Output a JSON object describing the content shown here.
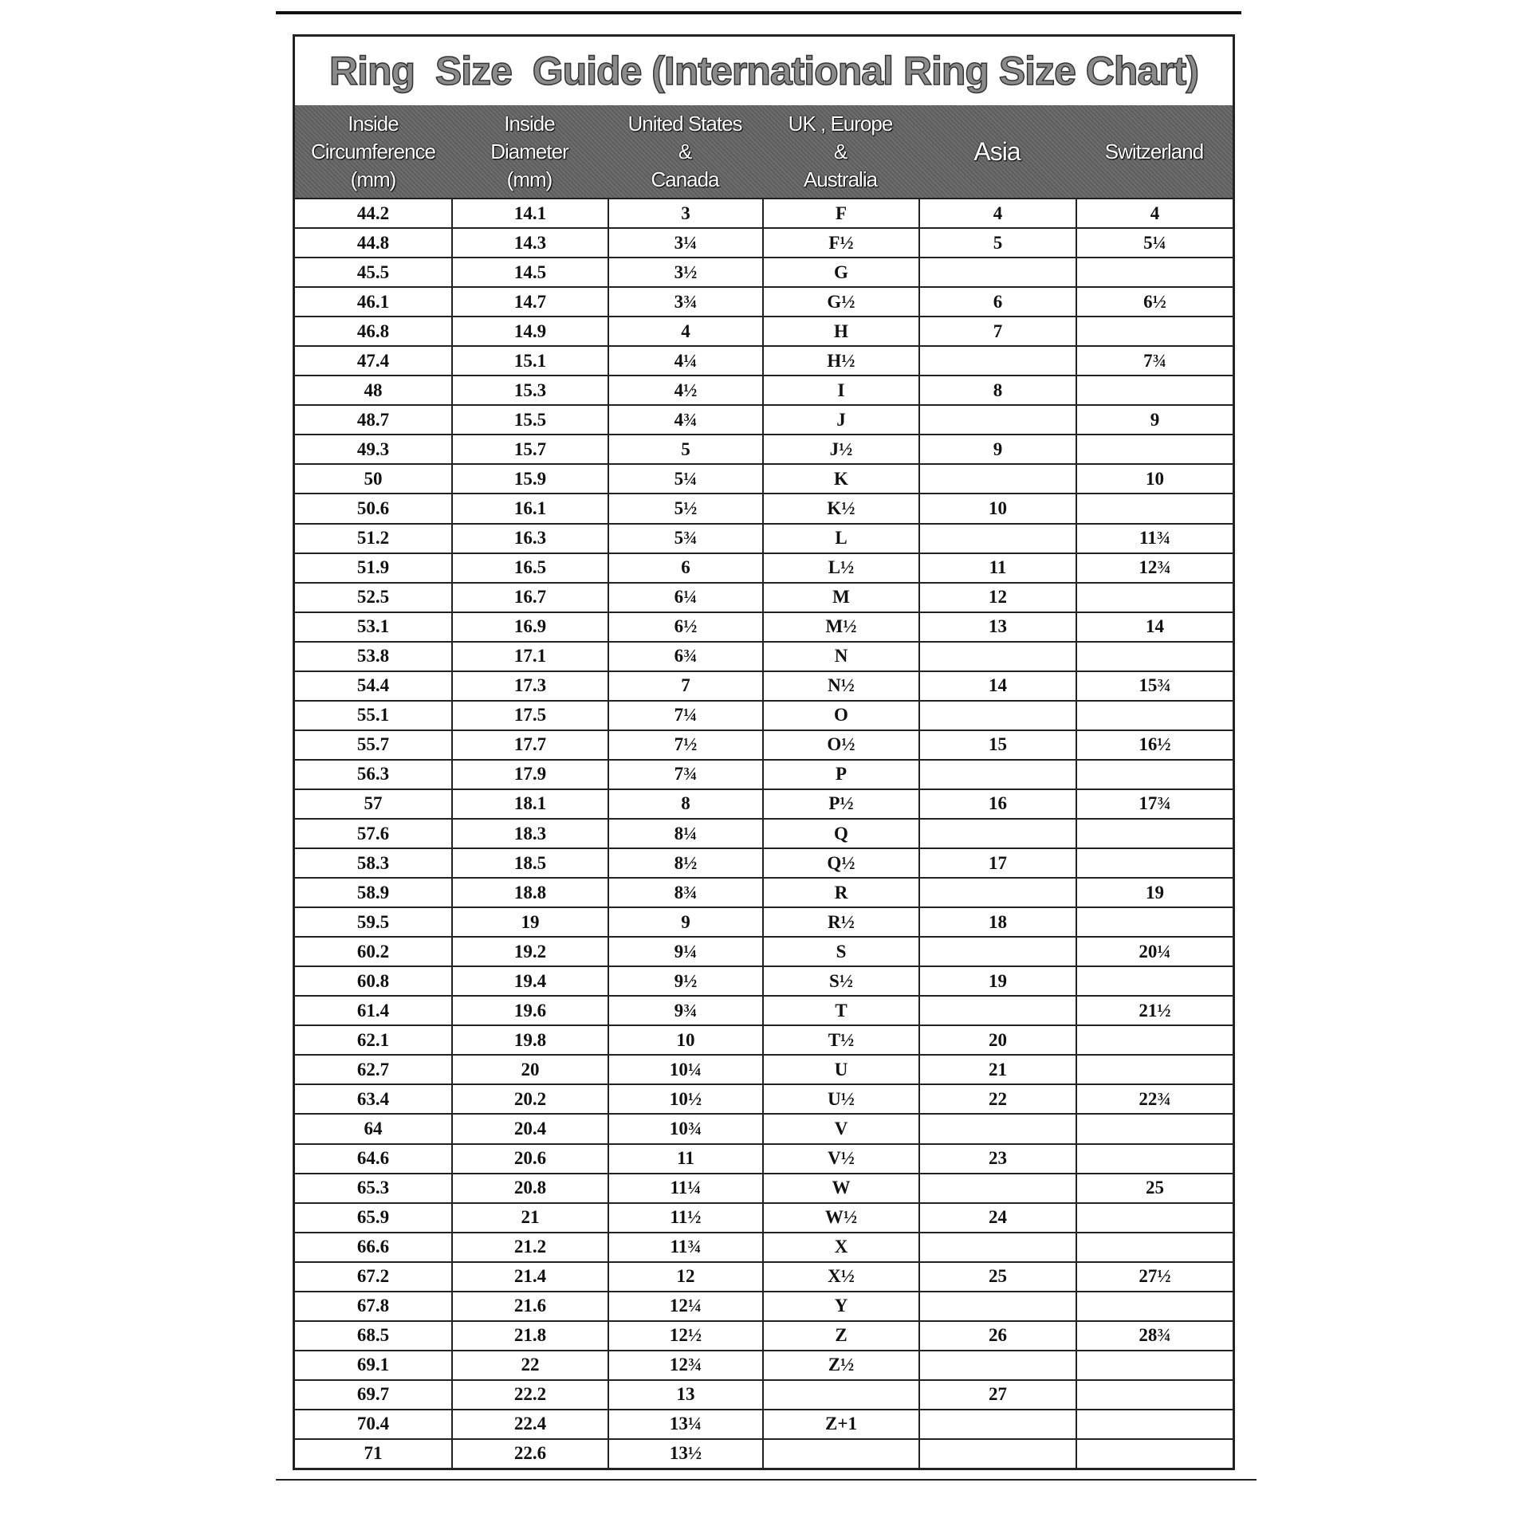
{
  "title": "Ring  Size  Guide (International Ring Size Chart)",
  "columns": [
    "Inside\nCircumference\n(mm)",
    "Inside\nDiameter\n(mm)",
    "United States\n&\nCanada",
    "UK , Europe\n&\nAustralia",
    "Asia",
    "Switzerland"
  ],
  "rows": [
    [
      "44.2",
      "14.1",
      "3",
      "F",
      "4",
      "4"
    ],
    [
      "44.8",
      "14.3",
      "3¼",
      "F½",
      "5",
      "5¼"
    ],
    [
      "45.5",
      "14.5",
      "3½",
      "G",
      "",
      ""
    ],
    [
      "46.1",
      "14.7",
      "3¾",
      "G½",
      "6",
      "6½"
    ],
    [
      "46.8",
      "14.9",
      "4",
      "H",
      "7",
      ""
    ],
    [
      "47.4",
      "15.1",
      "4¼",
      "H½",
      "",
      "7¾"
    ],
    [
      "48",
      "15.3",
      "4½",
      "I",
      "8",
      ""
    ],
    [
      "48.7",
      "15.5",
      "4¾",
      "J",
      "",
      "9"
    ],
    [
      "49.3",
      "15.7",
      "5",
      "J½",
      "9",
      ""
    ],
    [
      "50",
      "15.9",
      "5¼",
      "K",
      "",
      "10"
    ],
    [
      "50.6",
      "16.1",
      "5½",
      "K½",
      "10",
      ""
    ],
    [
      "51.2",
      "16.3",
      "5¾",
      "L",
      "",
      "11¾"
    ],
    [
      "51.9",
      "16.5",
      "6",
      "L½",
      "11",
      "12¾"
    ],
    [
      "52.5",
      "16.7",
      "6¼",
      "M",
      "12",
      ""
    ],
    [
      "53.1",
      "16.9",
      "6½",
      "M½",
      "13",
      "14"
    ],
    [
      "53.8",
      "17.1",
      "6¾",
      "N",
      "",
      ""
    ],
    [
      "54.4",
      "17.3",
      "7",
      "N½",
      "14",
      "15¾"
    ],
    [
      "55.1",
      "17.5",
      "7¼",
      "O",
      "",
      ""
    ],
    [
      "55.7",
      "17.7",
      "7½",
      "O½",
      "15",
      "16½"
    ],
    [
      "56.3",
      "17.9",
      "7¾",
      "P",
      "",
      ""
    ],
    [
      "57",
      "18.1",
      "8",
      "P½",
      "16",
      "17¾"
    ],
    [
      "57.6",
      "18.3",
      "8¼",
      "Q",
      "",
      ""
    ],
    [
      "58.3",
      "18.5",
      "8½",
      "Q½",
      "17",
      ""
    ],
    [
      "58.9",
      "18.8",
      "8¾",
      "R",
      "",
      "19"
    ],
    [
      "59.5",
      "19",
      "9",
      "R½",
      "18",
      ""
    ],
    [
      "60.2",
      "19.2",
      "9¼",
      "S",
      "",
      "20¼"
    ],
    [
      "60.8",
      "19.4",
      "9½",
      "S½",
      "19",
      ""
    ],
    [
      "61.4",
      "19.6",
      "9¾",
      "T",
      "",
      "21½"
    ],
    [
      "62.1",
      "19.8",
      "10",
      "T½",
      "20",
      ""
    ],
    [
      "62.7",
      "20",
      "10¼",
      "U",
      "21",
      ""
    ],
    [
      "63.4",
      "20.2",
      "10½",
      "U½",
      "22",
      "22¾"
    ],
    [
      "64",
      "20.4",
      "10¾",
      "V",
      "",
      ""
    ],
    [
      "64.6",
      "20.6",
      "11",
      "V½",
      "23",
      ""
    ],
    [
      "65.3",
      "20.8",
      "11¼",
      "W",
      "",
      "25"
    ],
    [
      "65.9",
      "21",
      "11½",
      "W½",
      "24",
      ""
    ],
    [
      "66.6",
      "21.2",
      "11¾",
      "X",
      "",
      ""
    ],
    [
      "67.2",
      "21.4",
      "12",
      "X½",
      "25",
      "27½"
    ],
    [
      "67.8",
      "21.6",
      "12¼",
      "Y",
      "",
      ""
    ],
    [
      "68.5",
      "21.8",
      "12½",
      "Z",
      "26",
      "28¾"
    ],
    [
      "69.1",
      "22",
      "12¾",
      "Z½",
      "",
      ""
    ],
    [
      "69.7",
      "22.2",
      "13",
      "",
      "27",
      ""
    ],
    [
      "70.4",
      "22.4",
      "13¼",
      "Z+1",
      "",
      ""
    ],
    [
      "71",
      "22.6",
      "13½",
      "",
      "",
      ""
    ]
  ]
}
